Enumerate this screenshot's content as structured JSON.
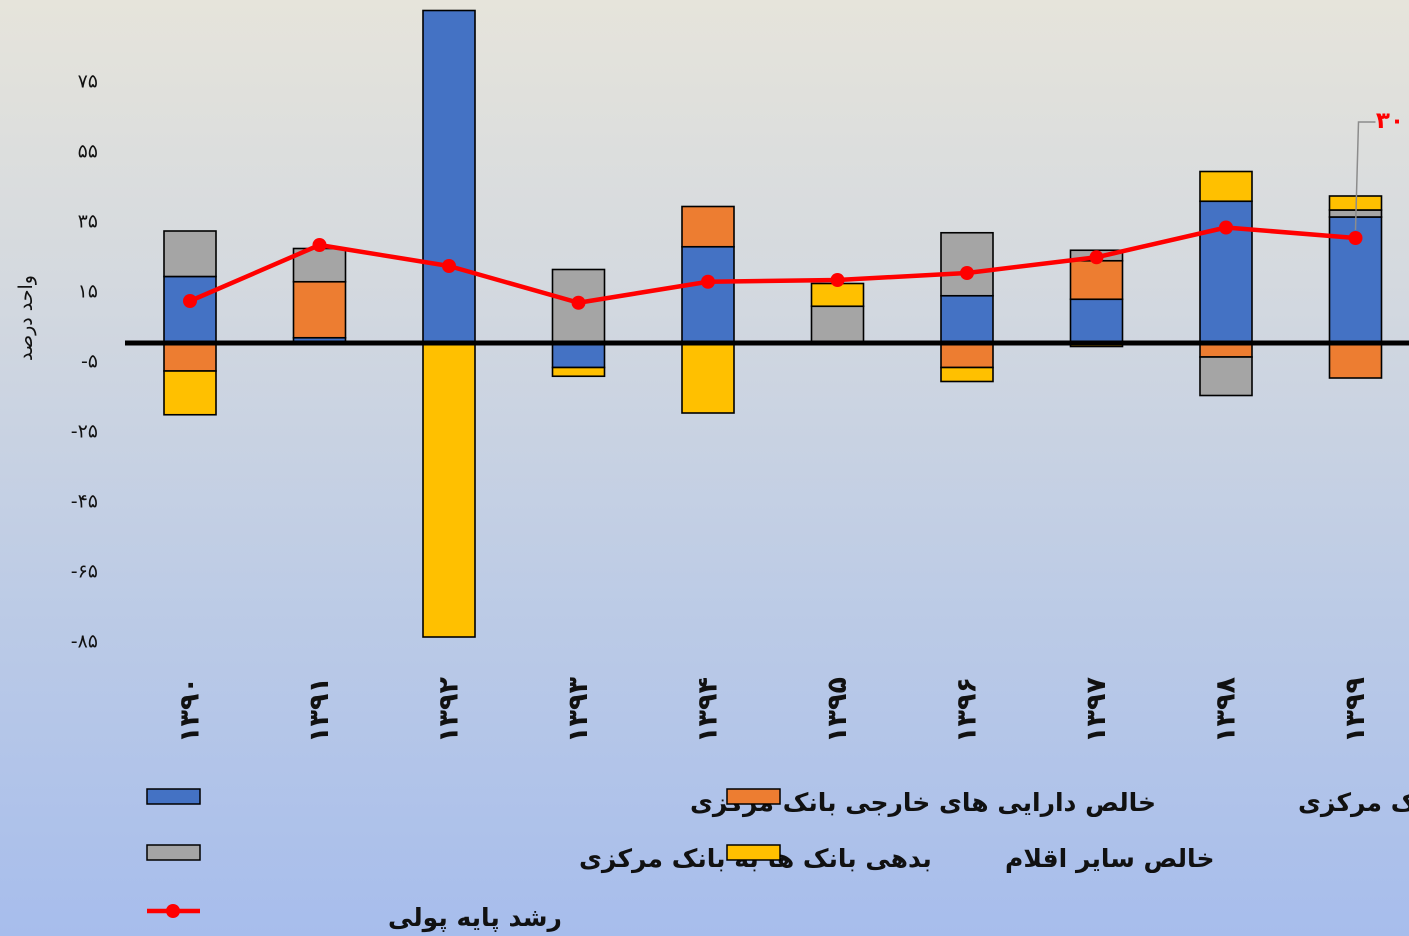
{
  "chart_data": {
    "type": "bar",
    "stacked": true,
    "title": "",
    "xlabel": "",
    "ylabel": "واحد درصد",
    "ylim": [
      -85,
      94
    ],
    "yticks": [
      75,
      55,
      35,
      15,
      -5,
      -25,
      -45,
      -65,
      -85
    ],
    "ytick_labels": [
      "۷۵",
      "۵۵",
      "۳۵",
      "۱۵",
      "-۵",
      "-۲۵",
      "-۴۵",
      "-۶۵",
      "-۸۵"
    ],
    "grid": false,
    "legend_position": "bottom",
    "categories": [
      "۱۳۹۰",
      "۱۳۹۱",
      "۱۳۹۲",
      "۱۳۹۳",
      "۱۳۹۴",
      "۱۳۹۵",
      "۱۳۹۶",
      "۱۳۹۷",
      "۱۳۹۸",
      "۱۳۹۹"
    ],
    "series": [
      {
        "name": "خالص دارایی های خارجی بانک مرکزی",
        "color": "#4472c4",
        "values": [
          19,
          1.5,
          95,
          -7,
          27.5,
          0,
          13.5,
          12.5,
          40.5,
          36
        ]
      },
      {
        "name": "خالص بدهی بخش دولتی به بانک مرکزی",
        "color": "#ed7d31",
        "values": [
          -8,
          16,
          0,
          0,
          11.5,
          0,
          -7,
          11,
          -4,
          -10
        ]
      },
      {
        "name": "بدهی بانک ها به بانک مرکزی",
        "color": "#a5a5a5",
        "values": [
          13,
          9.5,
          0,
          21,
          0,
          10.5,
          18,
          3,
          -11,
          2
        ]
      },
      {
        "name": "خالص سایر اقلام",
        "color": "#ffc000",
        "values": [
          -12.5,
          0,
          -84,
          -2.5,
          -20,
          6.5,
          -4,
          -1,
          8.5,
          4
        ]
      }
    ],
    "line_series": {
      "name": "رشد پایه پولی",
      "color": "#ff0000",
      "values": [
        12,
        28,
        22,
        11.5,
        17.5,
        18,
        20,
        24.5,
        33,
        30
      ]
    },
    "annotations": [
      {
        "category": "۱۳۹۹",
        "text": "۳۰"
      }
    ]
  }
}
